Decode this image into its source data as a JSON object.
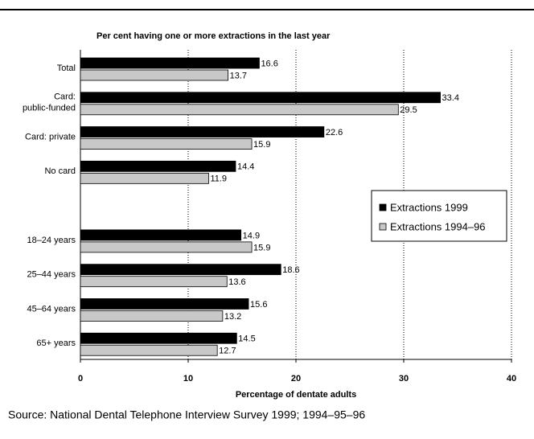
{
  "chart_data": {
    "type": "hbar",
    "title": "Per cent having one or more extractions in the last year",
    "x_label": "Percentage of dentate adults",
    "source": "Source:  National Dental Telephone Interview Survey 1999; 1994–95–96",
    "categories": [
      "Total",
      [
        "Card:",
        "public-funded"
      ],
      "Card: private",
      "No card",
      null,
      "18–24 years",
      "25–44 years",
      "45–64 years",
      "65+ years"
    ],
    "series": [
      {
        "name": "Extractions 1999",
        "color": "#000000",
        "values": [
          16.6,
          33.4,
          22.6,
          14.4,
          null,
          14.9,
          18.6,
          15.6,
          14.5
        ]
      },
      {
        "name": "Extractions 1994–96",
        "color": "#c8c8c8",
        "values": [
          13.7,
          29.5,
          15.9,
          11.9,
          null,
          15.9,
          13.6,
          13.2,
          12.7
        ]
      }
    ],
    "xlim": [
      0,
      40
    ],
    "xticks": [
      0,
      10,
      20,
      30,
      40
    ],
    "grid": true,
    "legend": "right"
  }
}
